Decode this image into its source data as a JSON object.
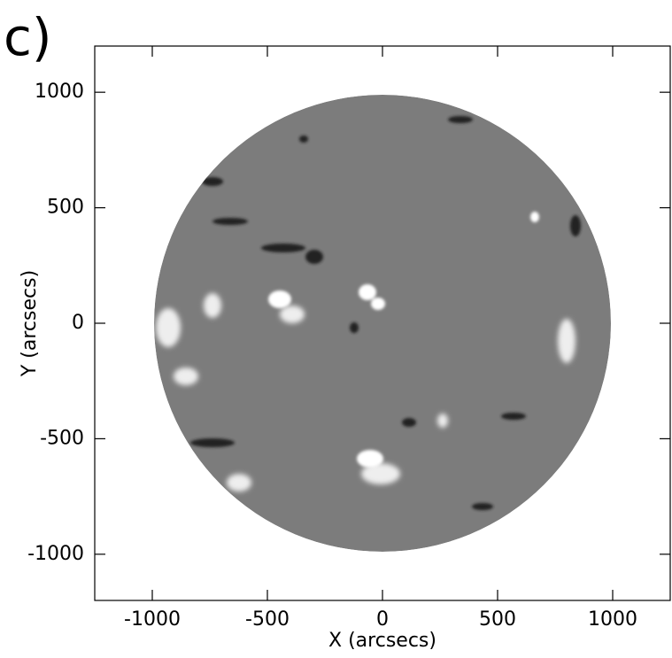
{
  "chart_data": {
    "type": "image",
    "panel_label": "c)",
    "x_label": "X (arcsecs)",
    "y_label": "Y (arcsecs)",
    "xlim": [
      -1250,
      1250
    ],
    "ylim": [
      -1200,
      1200
    ],
    "xticks": [
      -1000,
      -500,
      0,
      500,
      1000
    ],
    "yticks": [
      -1000,
      -500,
      0,
      500,
      1000
    ]
  }
}
